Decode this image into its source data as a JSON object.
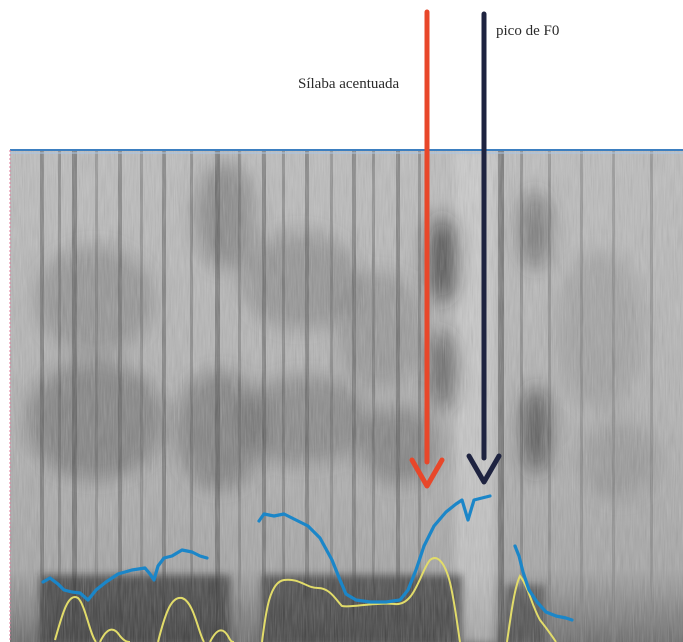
{
  "annotations": {
    "stressed_syllable": "Sílaba acentuada",
    "f0_peak": "pico de F0"
  },
  "colors": {
    "stressed_arrow": "#e8472a",
    "f0_peak_arrow": "#1e2340",
    "pitch_contour": "#1b86c8",
    "intensity_contour": "#e2dc6a",
    "spectrogram_top_line": "#3d7fc0",
    "spectrogram_left_border": "#e07a9a"
  },
  "icons": {
    "stressed_arrow": "down-arrow-icon",
    "f0_peak_arrow": "down-arrow-icon"
  }
}
